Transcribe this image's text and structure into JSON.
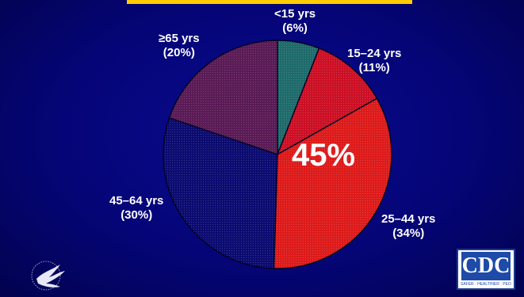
{
  "chart_data": {
    "type": "pie",
    "slices": [
      {
        "label": "<15 yrs",
        "pct_label": "(6%)",
        "value": 6,
        "color": "#1e6a6a"
      },
      {
        "label": "15–24 yrs",
        "pct_label": "(11%)",
        "value": 11,
        "color": "#cc0f24"
      },
      {
        "label": "25–44 yrs",
        "pct_label": "(34%)",
        "value": 34,
        "color": "#dd1a1a"
      },
      {
        "label": "45–64 yrs",
        "pct_label": "(30%)",
        "value": 30,
        "color": "#0a0a70"
      },
      {
        "label": "≥65 yrs",
        "pct_label": "(20%)",
        "value": 20,
        "color": "#5a1a55"
      }
    ],
    "annotation": "45%"
  },
  "logos": {
    "cdc": "CDC",
    "cdc_tagline": "SAFER · HEALTHIER · PEOPLE"
  },
  "colors": {
    "background": "#05057a",
    "text": "#ffffff",
    "accent": "#ffcc00"
  }
}
